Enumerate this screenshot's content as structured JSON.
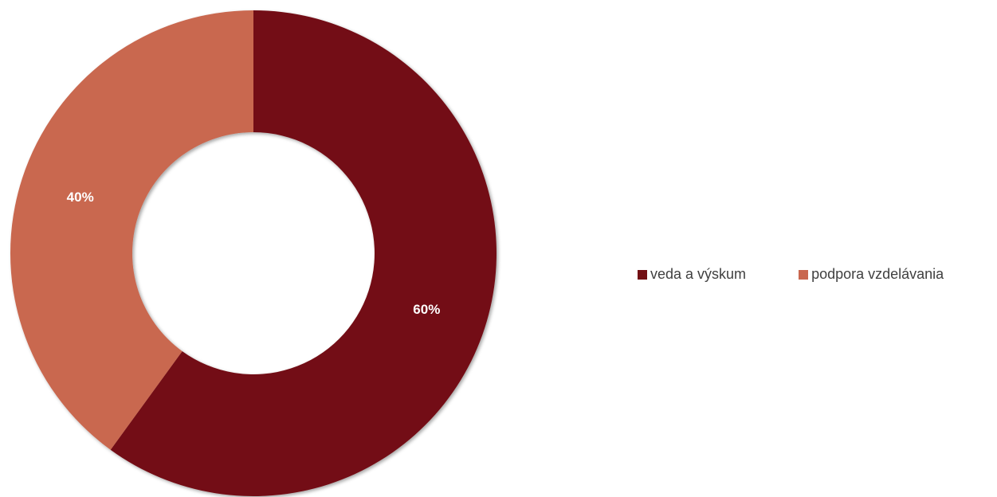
{
  "chart_data": {
    "type": "pie",
    "variant": "donut",
    "title": "",
    "legend_position": "right",
    "slices": [
      {
        "label": "veda a výskum",
        "value": 60,
        "display": "60%",
        "color": "#731014"
      },
      {
        "label": "podpora vzdelávania",
        "value": 40,
        "display": "40%",
        "color": "#C9674F"
      }
    ]
  }
}
